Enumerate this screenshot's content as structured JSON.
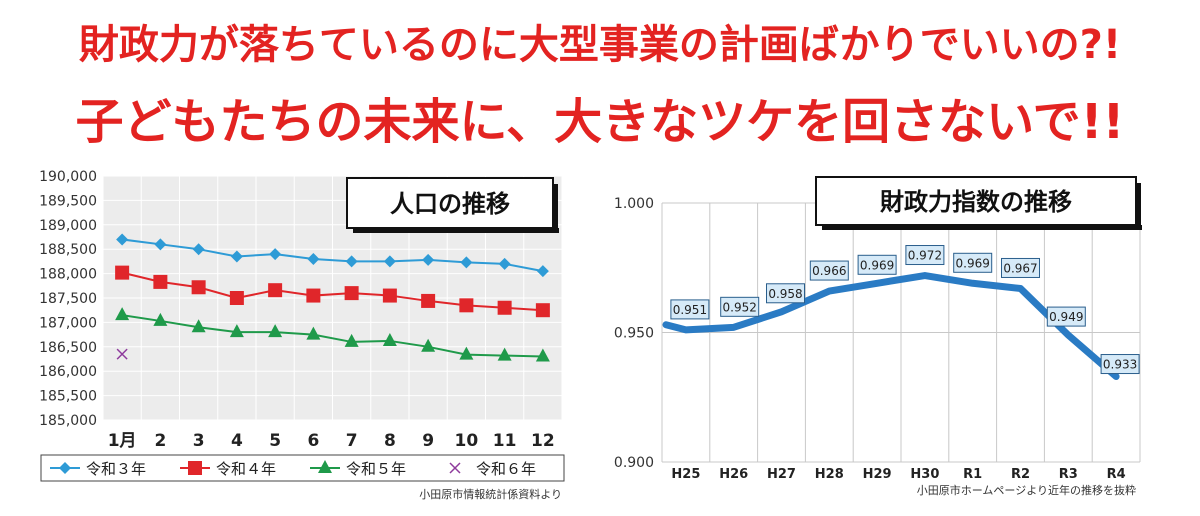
{
  "headline": {
    "line1": "財政力が落ちているのに大型事業の計画ばかりでいいの?!",
    "line2": "子どもたちの未来に、大きなツケを回さないで!!"
  },
  "colors": {
    "headline": "#e32321",
    "reiwa3": "#2e9bd6",
    "reiwa4": "#e0262a",
    "reiwa5": "#1f9a4a",
    "reiwa6": "#8e3a9c",
    "fiscal_line": "#2a7bc4",
    "fiscal_label_bg": "#d6eaf8"
  },
  "chart_data": [
    {
      "type": "line",
      "title": "人口の推移",
      "categories": [
        "1月",
        "2",
        "3",
        "4",
        "5",
        "6",
        "7",
        "8",
        "9",
        "10",
        "11",
        "12"
      ],
      "ylim": [
        185000,
        190000
      ],
      "yticks": [
        "190,000",
        "189,500",
        "189,000",
        "188,500",
        "188,000",
        "187,500",
        "187,000",
        "186,500",
        "186,000",
        "185,500",
        "185,000"
      ],
      "grid": true,
      "legend_position": "bottom",
      "series": [
        {
          "name": "令和３年",
          "marker": "diamond",
          "values": [
            188700,
            188600,
            188500,
            188350,
            188400,
            188300,
            188250,
            188250,
            188280,
            188230,
            188200,
            188050
          ]
        },
        {
          "name": "令和４年",
          "marker": "square",
          "values": [
            188020,
            187830,
            187720,
            187500,
            187660,
            187550,
            187600,
            187550,
            187440,
            187350,
            187300,
            187250
          ]
        },
        {
          "name": "令和５年",
          "marker": "triangle",
          "values": [
            187150,
            187030,
            186900,
            186800,
            186800,
            186750,
            186600,
            186620,
            186500,
            186340,
            186320,
            186300
          ]
        },
        {
          "name": "令和６年",
          "marker": "x",
          "values": [
            186350,
            null,
            null,
            null,
            null,
            null,
            null,
            null,
            null,
            null,
            null,
            null
          ]
        }
      ],
      "source": "小田原市情報統計係資料より"
    },
    {
      "type": "line",
      "title": "財政力指数の推移",
      "categories": [
        "H25",
        "H26",
        "H27",
        "H28",
        "H29",
        "H30",
        "R1",
        "R2",
        "R3",
        "R4"
      ],
      "ylim": [
        0.9,
        1.0
      ],
      "yticks": [
        "1.000",
        "0.950",
        "0.900"
      ],
      "grid": true,
      "series": [
        {
          "values": [
            0.951,
            0.952,
            0.958,
            0.966,
            0.969,
            0.972,
            0.969,
            0.967,
            0.949,
            0.933
          ],
          "labels": [
            "0.951",
            "0.952",
            "0.958",
            "0.966",
            "0.969",
            "0.972",
            "0.969",
            "0.967",
            "0.949",
            "0.933"
          ]
        }
      ],
      "source": "小田原市ホームページより近年の推移を抜粋"
    }
  ]
}
